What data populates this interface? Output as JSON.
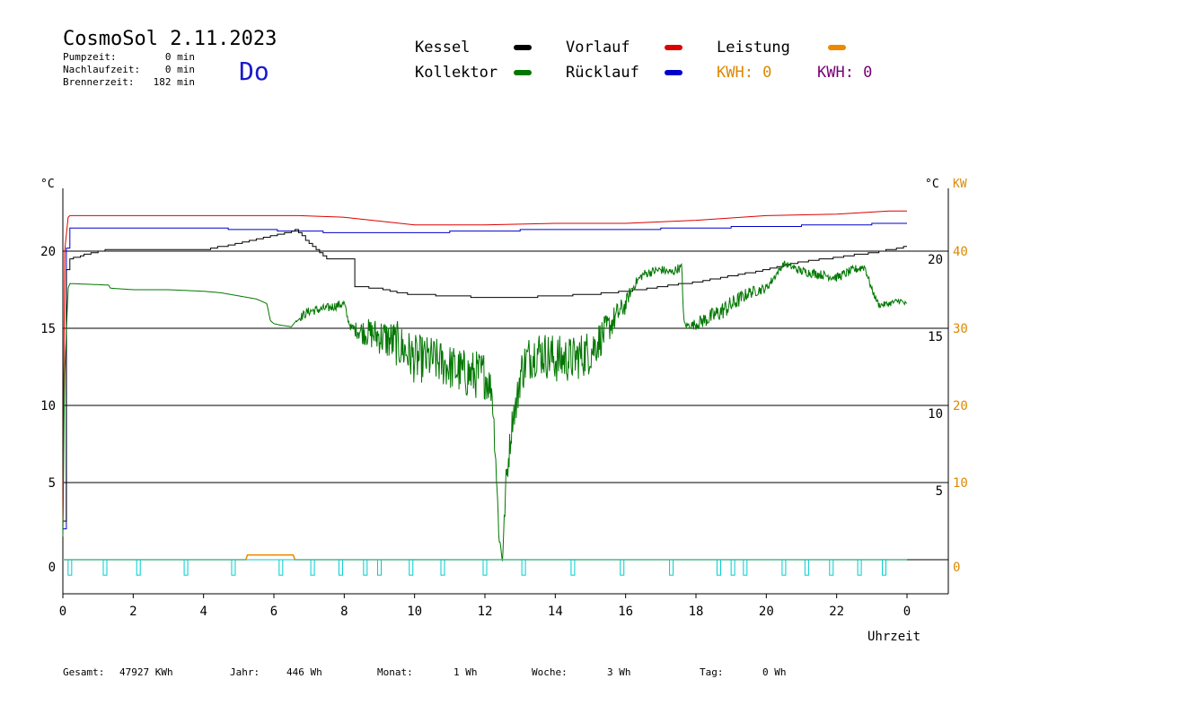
{
  "header": {
    "title": "CosmoSol 2.11.2023",
    "weekday": "Do",
    "stats": [
      {
        "label": "Pumpzeit:",
        "value": "0 min"
      },
      {
        "label": "Nachlaufzeit:",
        "value": "0 min"
      },
      {
        "label": "Brennerzeit:",
        "value": "182 min"
      }
    ]
  },
  "legend": [
    {
      "name": "Kessel",
      "color": "#000000"
    },
    {
      "name": "Vorlauf",
      "color": "#dd0000"
    },
    {
      "name": "Leistung",
      "color": "#ee8800"
    },
    {
      "name": "Kollektor",
      "color": "#007700"
    },
    {
      "name": "Rücklauf",
      "color": "#0000cc"
    }
  ],
  "kwh": [
    {
      "text": "KWH: 0",
      "color": "#dd8800"
    },
    {
      "text": "KWH: 0",
      "color": "#770077"
    }
  ],
  "axes": {
    "left_unit": "°C",
    "right_unit": "°C",
    "kw_unit": "KW",
    "x_label": "Uhrzeit",
    "x_ticks": [
      "0",
      "2",
      "4",
      "6",
      "8",
      "10",
      "12",
      "14",
      "16",
      "18",
      "20",
      "22",
      "0"
    ],
    "left_ticks": [
      "20",
      "15",
      "10",
      "5",
      "0"
    ],
    "right_ticks": [
      "20",
      "15",
      "10",
      "5"
    ],
    "kw_ticks": [
      "40",
      "30",
      "20",
      "10",
      "0"
    ]
  },
  "footer": [
    {
      "label": "Gesamt:",
      "value": "47927 KWh"
    },
    {
      "label": "Jahr:",
      "value": "446 Wh"
    },
    {
      "label": "Monat:",
      "value": "1 Wh"
    },
    {
      "label": "Woche:",
      "value": "3 Wh"
    },
    {
      "label": "Tag:",
      "value": "0 Wh"
    }
  ],
  "chart_data": {
    "type": "line",
    "xlabel": "Uhrzeit",
    "ylabel": "°C",
    "xlim": [
      0,
      24
    ],
    "ylim": [
      -1.7,
      24.5
    ],
    "grid": true,
    "series": [
      {
        "name": "Vorlauf",
        "color": "#dd0000",
        "x": [
          0.0,
          0.05,
          0.15,
          0.2,
          6.7,
          8.0,
          10.0,
          12.0,
          14.0,
          16.0,
          18.0,
          20.0,
          22.0,
          23.5,
          24.0
        ],
        "y": [
          2.5,
          20.0,
          22.2,
          22.3,
          22.3,
          22.2,
          21.7,
          21.7,
          21.8,
          21.8,
          22.0,
          22.3,
          22.4,
          22.6,
          22.6
        ]
      },
      {
        "name": "Rücklauf",
        "color": "#0000cc",
        "x": [
          0.0,
          0.05,
          0.15,
          0.2,
          4.0,
          8.0,
          10.0,
          12.0,
          14.0,
          16.0,
          18.0,
          20.0,
          22.0,
          24.0
        ],
        "y": [
          2.0,
          19.0,
          21.4,
          21.5,
          21.5,
          21.2,
          21.2,
          21.3,
          21.4,
          21.4,
          21.5,
          21.6,
          21.7,
          21.8
        ],
        "style": "step"
      },
      {
        "name": "Kessel",
        "color": "#000000",
        "x": [
          0.0,
          0.05,
          0.15,
          0.5,
          1.0,
          1.3,
          4.0,
          5.0,
          6.0,
          6.5,
          6.6,
          6.7,
          7.0,
          7.5,
          8.0,
          8.2,
          8.3,
          9.0,
          9.5,
          10.0,
          11.0,
          12.0,
          13.0,
          14.0,
          15.0,
          16.0,
          17.0,
          18.0,
          19.0,
          20.0,
          21.0,
          22.0,
          23.0,
          23.5,
          24.0
        ],
        "y": [
          2.5,
          18.0,
          19.5,
          19.7,
          20.0,
          20.1,
          20.1,
          20.5,
          21.0,
          21.3,
          21.4,
          21.2,
          20.5,
          19.5,
          19.5,
          19.5,
          17.7,
          17.6,
          17.3,
          17.2,
          17.1,
          17.0,
          17.0,
          17.1,
          17.2,
          17.4,
          17.7,
          18.0,
          18.4,
          18.8,
          19.3,
          19.6,
          19.9,
          20.1,
          20.3
        ],
        "style": "step"
      },
      {
        "name": "Kollektor",
        "color": "#007700",
        "style": "noisy",
        "x": [
          0.0,
          0.05,
          0.15,
          0.2,
          1.3,
          1.35,
          2.0,
          3.0,
          4.0,
          4.5,
          5.0,
          5.5,
          5.8,
          5.9,
          6.0,
          6.2,
          6.5,
          6.6,
          6.8,
          7.0,
          7.5,
          8.0,
          8.1,
          8.2,
          8.5,
          9.0,
          9.5,
          10.0,
          10.5,
          11.0,
          11.5,
          12.0,
          12.2,
          12.3,
          12.4,
          12.5,
          12.6,
          12.8,
          12.9,
          13.0,
          13.2,
          13.5,
          14.0,
          14.5,
          15.0,
          15.5,
          15.8,
          16.0,
          16.1,
          16.3,
          16.5,
          16.8,
          17.0,
          17.3,
          17.5,
          17.6,
          17.65,
          17.7,
          17.9,
          18.0,
          18.5,
          19.0,
          19.5,
          20.0,
          20.5,
          21.0,
          21.5,
          22.0,
          22.5,
          22.8,
          23.0,
          23.2,
          23.5,
          23.8,
          24.0
        ],
        "y": [
          1.5,
          12.0,
          17.6,
          17.9,
          17.8,
          17.6,
          17.5,
          17.5,
          17.4,
          17.3,
          17.1,
          16.9,
          16.6,
          15.5,
          15.3,
          15.2,
          15.1,
          15.4,
          15.8,
          16.1,
          16.3,
          16.6,
          15.6,
          15.0,
          14.8,
          14.5,
          14.0,
          13.0,
          13.0,
          12.5,
          12.0,
          12.0,
          11.0,
          7.0,
          1.5,
          0.0,
          5.0,
          9.5,
          10.0,
          12.0,
          13.0,
          13.5,
          13.0,
          13.0,
          13.5,
          15.0,
          16.0,
          16.5,
          17.2,
          18.0,
          18.5,
          18.7,
          18.8,
          18.6,
          18.9,
          18.9,
          15.5,
          15.2,
          15.2,
          15.3,
          15.8,
          16.5,
          17.3,
          17.6,
          19.2,
          18.7,
          18.5,
          18.3,
          18.8,
          19.0,
          17.5,
          16.5,
          16.6,
          16.8,
          16.5
        ],
        "noise": [
          0,
          0,
          0,
          0,
          0,
          0,
          0,
          0,
          0,
          0,
          0,
          0,
          0,
          0,
          0,
          0,
          0,
          0,
          0.3,
          0.3,
          0.3,
          0.3,
          0.2,
          0.3,
          0.8,
          1.2,
          1.5,
          1.6,
          1.5,
          1.5,
          1.6,
          1.6,
          1.0,
          1.0,
          0.4,
          0.3,
          1.0,
          1.0,
          1.2,
          1.5,
          1.5,
          1.5,
          1.6,
          1.5,
          1.5,
          1.0,
          0.8,
          0.6,
          0.4,
          0.3,
          0.3,
          0.3,
          0.3,
          0.3,
          0.3,
          0.3,
          0.2,
          0.2,
          0.3,
          0.4,
          0.6,
          0.6,
          0.4,
          0.3,
          0.2,
          0.3,
          0.3,
          0.3,
          0.3,
          0.3,
          0.2,
          0.2,
          0.2,
          0.2,
          0.2
        ]
      },
      {
        "name": "Leistung",
        "color": "#ee8800",
        "axis": "kw",
        "x": [
          0.0,
          5.2,
          5.25,
          6.55,
          6.6,
          24.0
        ],
        "y": [
          0,
          0,
          0.6,
          0.6,
          0,
          0
        ]
      },
      {
        "name": "Pumpe",
        "color": "#00cccc",
        "style": "pulses",
        "pulses": [
          0.2,
          1.2,
          2.15,
          3.5,
          4.85,
          6.2,
          7.1,
          7.9,
          8.6,
          9.0,
          9.9,
          10.8,
          12.0,
          13.1,
          14.5,
          15.9,
          17.3,
          18.65,
          19.05,
          19.4,
          20.5,
          21.15,
          21.85,
          22.65,
          23.35
        ],
        "depth": -1.0
      }
    ]
  }
}
